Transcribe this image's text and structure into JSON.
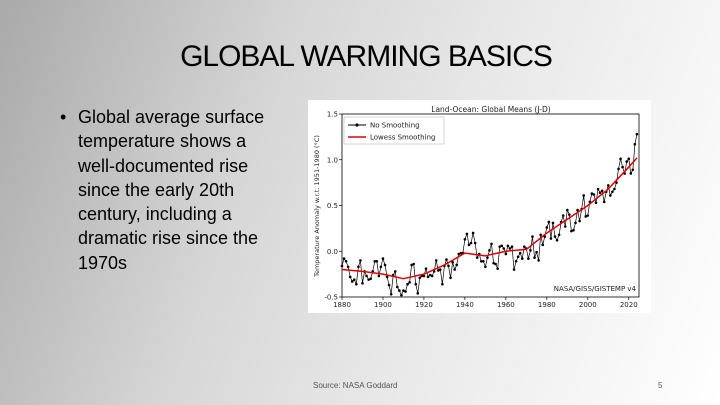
{
  "slide": {
    "title": "GLOBAL WARMING BASICS",
    "bullets": [
      "Global average surface temperature shows a well-documented rise since the early 20th century, including a dramatic rise since the 1970s"
    ],
    "source": "Source: NASA Goddard",
    "slide_number": "5"
  },
  "chart_data": {
    "type": "line",
    "title": "Land-Ocean: Global Means (J-D)",
    "xlabel": "",
    "ylabel": "Temperature Anomaly w.r.t. 1951-1980 (°C)",
    "annotation": "NASA/GISS/GISTEMP v4",
    "xlim": [
      1880,
      2025
    ],
    "ylim": [
      -0.5,
      1.5
    ],
    "x_ticks": [
      "1880",
      "1900",
      "1920",
      "1940",
      "1960",
      "1980",
      "2000",
      "2020"
    ],
    "y_ticks": [
      "-0.5",
      "0.0",
      "0.5",
      "1.0",
      "1.5"
    ],
    "legend": {
      "position": "top-left",
      "entries": [
        "No Smoothing",
        "Lowess Smoothing"
      ]
    },
    "series": [
      {
        "name": "No Smoothing",
        "color": "#000000",
        "x": [
          1880,
          1881,
          1882,
          1883,
          1884,
          1885,
          1886,
          1887,
          1888,
          1889,
          1890,
          1891,
          1892,
          1893,
          1894,
          1895,
          1896,
          1897,
          1898,
          1899,
          1900,
          1901,
          1902,
          1903,
          1904,
          1905,
          1906,
          1907,
          1908,
          1909,
          1910,
          1911,
          1912,
          1913,
          1914,
          1915,
          1916,
          1917,
          1918,
          1919,
          1920,
          1921,
          1922,
          1923,
          1924,
          1925,
          1926,
          1927,
          1928,
          1929,
          1930,
          1931,
          1932,
          1933,
          1934,
          1935,
          1936,
          1937,
          1938,
          1939,
          1940,
          1941,
          1942,
          1943,
          1944,
          1945,
          1946,
          1947,
          1948,
          1949,
          1950,
          1951,
          1952,
          1953,
          1954,
          1955,
          1956,
          1957,
          1958,
          1959,
          1960,
          1961,
          1962,
          1963,
          1964,
          1965,
          1966,
          1967,
          1968,
          1969,
          1970,
          1971,
          1972,
          1973,
          1974,
          1975,
          1976,
          1977,
          1978,
          1979,
          1980,
          1981,
          1982,
          1983,
          1984,
          1985,
          1986,
          1987,
          1988,
          1989,
          1990,
          1991,
          1992,
          1993,
          1994,
          1995,
          1996,
          1997,
          1998,
          1999,
          2000,
          2001,
          2002,
          2003,
          2004,
          2005,
          2006,
          2007,
          2008,
          2009,
          2010,
          2011,
          2012,
          2013,
          2014,
          2015,
          2016,
          2017,
          2018,
          2019,
          2020,
          2021,
          2022,
          2023,
          2024
        ],
        "values": [
          -0.16,
          -0.08,
          -0.11,
          -0.17,
          -0.28,
          -0.33,
          -0.31,
          -0.36,
          -0.17,
          -0.1,
          -0.35,
          -0.22,
          -0.27,
          -0.31,
          -0.3,
          -0.22,
          -0.11,
          -0.11,
          -0.27,
          -0.17,
          -0.08,
          -0.15,
          -0.28,
          -0.37,
          -0.47,
          -0.26,
          -0.22,
          -0.39,
          -0.43,
          -0.48,
          -0.43,
          -0.44,
          -0.36,
          -0.34,
          -0.15,
          -0.14,
          -0.36,
          -0.46,
          -0.29,
          -0.27,
          -0.27,
          -0.19,
          -0.28,
          -0.26,
          -0.27,
          -0.22,
          -0.1,
          -0.21,
          -0.2,
          -0.36,
          -0.16,
          -0.09,
          -0.16,
          -0.29,
          -0.12,
          -0.2,
          -0.15,
          -0.03,
          -0.02,
          -0.02,
          0.13,
          0.19,
          0.07,
          0.09,
          0.2,
          0.09,
          -0.07,
          -0.03,
          -0.11,
          -0.11,
          -0.17,
          -0.07,
          0.01,
          0.08,
          -0.13,
          -0.14,
          -0.19,
          0.05,
          0.06,
          0.03,
          -0.03,
          0.06,
          0.03,
          0.05,
          -0.2,
          -0.11,
          -0.06,
          -0.02,
          -0.08,
          0.05,
          0.03,
          -0.08,
          0.01,
          0.16,
          -0.07,
          -0.01,
          -0.1,
          0.18,
          0.07,
          0.16,
          0.26,
          0.32,
          0.14,
          0.31,
          0.16,
          0.12,
          0.18,
          0.32,
          0.39,
          0.27,
          0.45,
          0.4,
          0.22,
          0.23,
          0.31,
          0.45,
          0.33,
          0.46,
          0.61,
          0.38,
          0.39,
          0.54,
          0.63,
          0.62,
          0.53,
          0.68,
          0.64,
          0.66,
          0.54,
          0.65,
          0.72,
          0.61,
          0.65,
          0.68,
          0.75,
          0.9,
          1.01,
          0.92,
          0.85,
          0.98,
          1.01,
          0.85,
          0.89,
          1.17,
          1.28
        ]
      },
      {
        "name": "Lowess Smoothing",
        "color": "#e00000",
        "x": [
          1880,
          1890,
          1900,
          1910,
          1920,
          1930,
          1940,
          1950,
          1960,
          1970,
          1980,
          1990,
          2000,
          2010,
          2020,
          2024
        ],
        "values": [
          -0.2,
          -0.22,
          -0.25,
          -0.3,
          -0.25,
          -0.15,
          -0.02,
          -0.05,
          0.0,
          0.02,
          0.2,
          0.35,
          0.5,
          0.68,
          0.92,
          1.02
        ]
      }
    ]
  }
}
